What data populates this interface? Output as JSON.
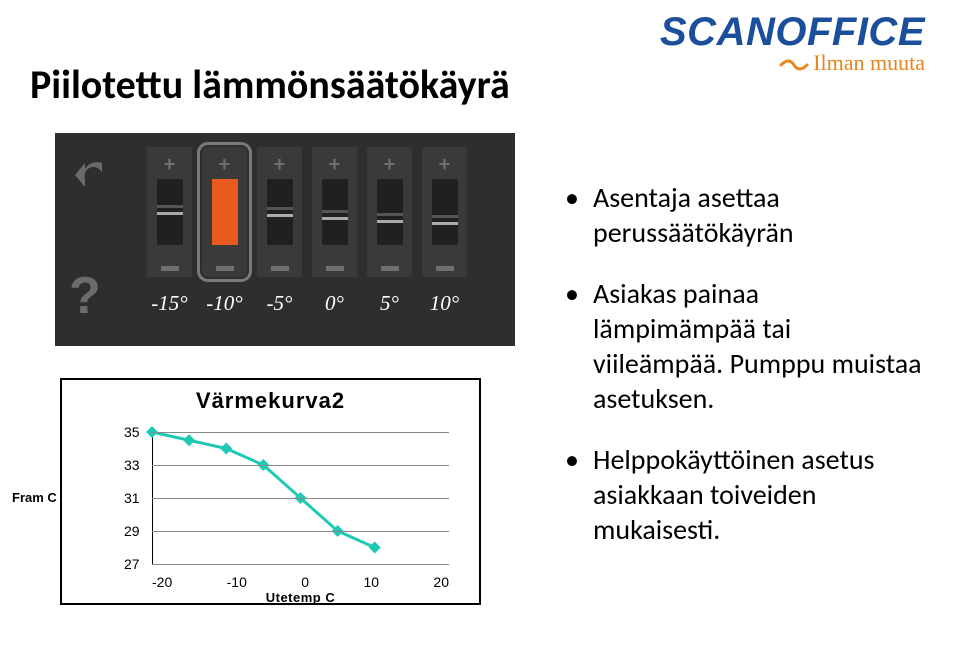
{
  "title": "Piilotettu lämmönsäätökäyrä",
  "logo": {
    "main": "SCANOFFICE",
    "sub": "Ilman muuta"
  },
  "panel": {
    "bg": "#2e2e2e",
    "icon_color": "#6b6b6b",
    "temps": [
      "-15°",
      "-10°",
      "-5°",
      "0°",
      "5°",
      "10°"
    ],
    "selected_index": 1,
    "fill_color": "#e85a1e",
    "slots": [
      {
        "fill_pct": 0,
        "marker_pct": 40
      },
      {
        "fill_pct": 100,
        "marker_pct": null
      },
      {
        "fill_pct": 0,
        "marker_pct": 43
      },
      {
        "fill_pct": 0,
        "marker_pct": 47
      },
      {
        "fill_pct": 0,
        "marker_pct": 51
      },
      {
        "fill_pct": 0,
        "marker_pct": 55
      }
    ]
  },
  "chart": {
    "title": "Värmekurva2",
    "y_title": "Fram C",
    "x_title": "Utetemp C",
    "xlim": [
      -20,
      20
    ],
    "ylim": [
      27,
      35
    ],
    "xticks": [
      -20,
      -10,
      0,
      10,
      20
    ],
    "yticks": [
      27,
      29,
      31,
      33,
      35
    ],
    "line_color": "#20c9b3",
    "marker_color": "#20c9b3",
    "grid_color": "#888888",
    "points_x": [
      -20,
      -15,
      -10,
      -5,
      0,
      5,
      10
    ],
    "points_y": [
      35,
      34.5,
      34,
      33,
      31,
      29,
      28
    ]
  },
  "bullets": [
    "Asentaja asettaa perussäätökäyrän",
    "Asiakas painaa lämpimämpää tai viileämpää. Pumppu muistaa asetuksen.",
    "Helppokäyttöinen asetus asiakkaan toiveiden mukaisesti."
  ]
}
